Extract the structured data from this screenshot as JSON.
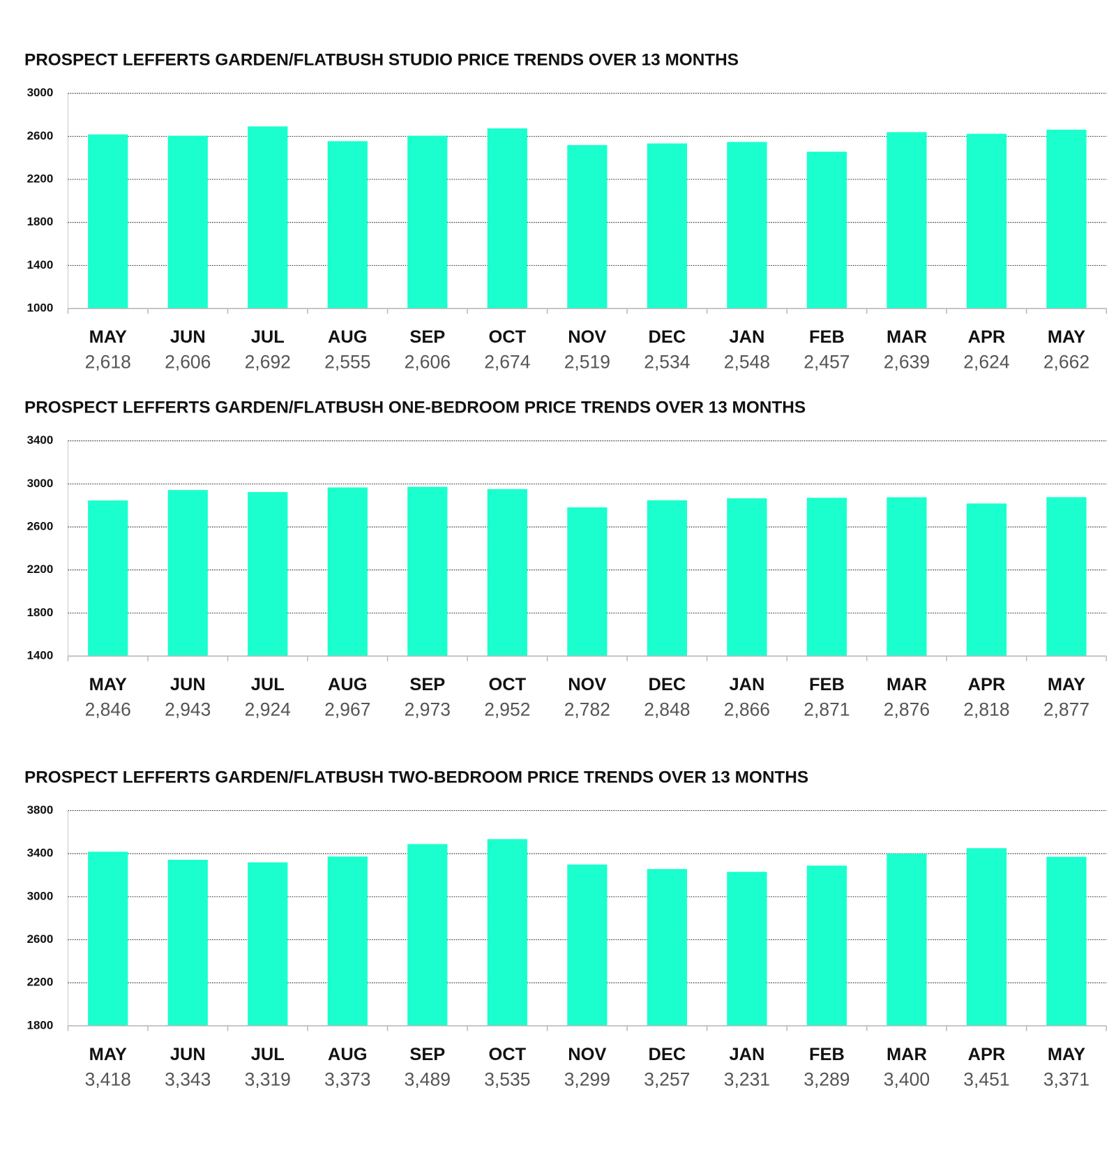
{
  "chart_data": [
    {
      "type": "bar",
      "title": "PROSPECT LEFFERTS GARDEN/FLATBUSH STUDIO PRICE TRENDS OVER 13 MONTHS",
      "categories": [
        "MAY",
        "JUN",
        "JUL",
        "AUG",
        "SEP",
        "OCT",
        "NOV",
        "DEC",
        "JAN",
        "FEB",
        "MAR",
        "APR",
        "MAY"
      ],
      "values": [
        2618,
        2606,
        2692,
        2555,
        2606,
        2674,
        2519,
        2534,
        2548,
        2457,
        2639,
        2624,
        2662
      ],
      "value_labels": [
        "2,618",
        "2,606",
        "2,692",
        "2,555",
        "2,606",
        "2,674",
        "2,519",
        "2,534",
        "2,548",
        "2,457",
        "2,639",
        "2,624",
        "2,662"
      ],
      "color": "#1affcd",
      "ylim": [
        1000,
        3000
      ],
      "yticks": [
        1000,
        1400,
        1800,
        2200,
        2600,
        3000
      ],
      "grid": true
    },
    {
      "type": "bar",
      "title": "PROSPECT LEFFERTS GARDEN/FLATBUSH ONE-BEDROOM PRICE TRENDS OVER 13 MONTHS",
      "categories": [
        "MAY",
        "JUN",
        "JUL",
        "AUG",
        "SEP",
        "OCT",
        "NOV",
        "DEC",
        "JAN",
        "FEB",
        "MAR",
        "APR",
        "MAY"
      ],
      "values": [
        2846,
        2943,
        2924,
        2967,
        2973,
        2952,
        2782,
        2848,
        2866,
        2871,
        2876,
        2818,
        2877
      ],
      "value_labels": [
        "2,846",
        "2,943",
        "2,924",
        "2,967",
        "2,973",
        "2,952",
        "2,782",
        "2,848",
        "2,866",
        "2,871",
        "2,876",
        "2,818",
        "2,877"
      ],
      "color": "#1affcd",
      "ylim": [
        1400,
        3400
      ],
      "yticks": [
        1400,
        1800,
        2200,
        2600,
        3000,
        3400
      ],
      "grid": true
    },
    {
      "type": "bar",
      "title": "PROSPECT LEFFERTS GARDEN/FLATBUSH TWO-BEDROOM PRICE TRENDS OVER 13 MONTHS",
      "categories": [
        "MAY",
        "JUN",
        "JUL",
        "AUG",
        "SEP",
        "OCT",
        "NOV",
        "DEC",
        "JAN",
        "FEB",
        "MAR",
        "APR",
        "MAY"
      ],
      "values": [
        3418,
        3343,
        3319,
        3373,
        3489,
        3535,
        3299,
        3257,
        3231,
        3289,
        3400,
        3451,
        3371
      ],
      "value_labels": [
        "3,418",
        "3,343",
        "3,319",
        "3,373",
        "3,489",
        "3,535",
        "3,299",
        "3,257",
        "3,231",
        "3,289",
        "3,400",
        "3,451",
        "3,371"
      ],
      "color": "#1affcd",
      "ylim": [
        1800,
        3800
      ],
      "yticks": [
        1800,
        2200,
        2600,
        3000,
        3400,
        3800
      ],
      "grid": true
    }
  ]
}
